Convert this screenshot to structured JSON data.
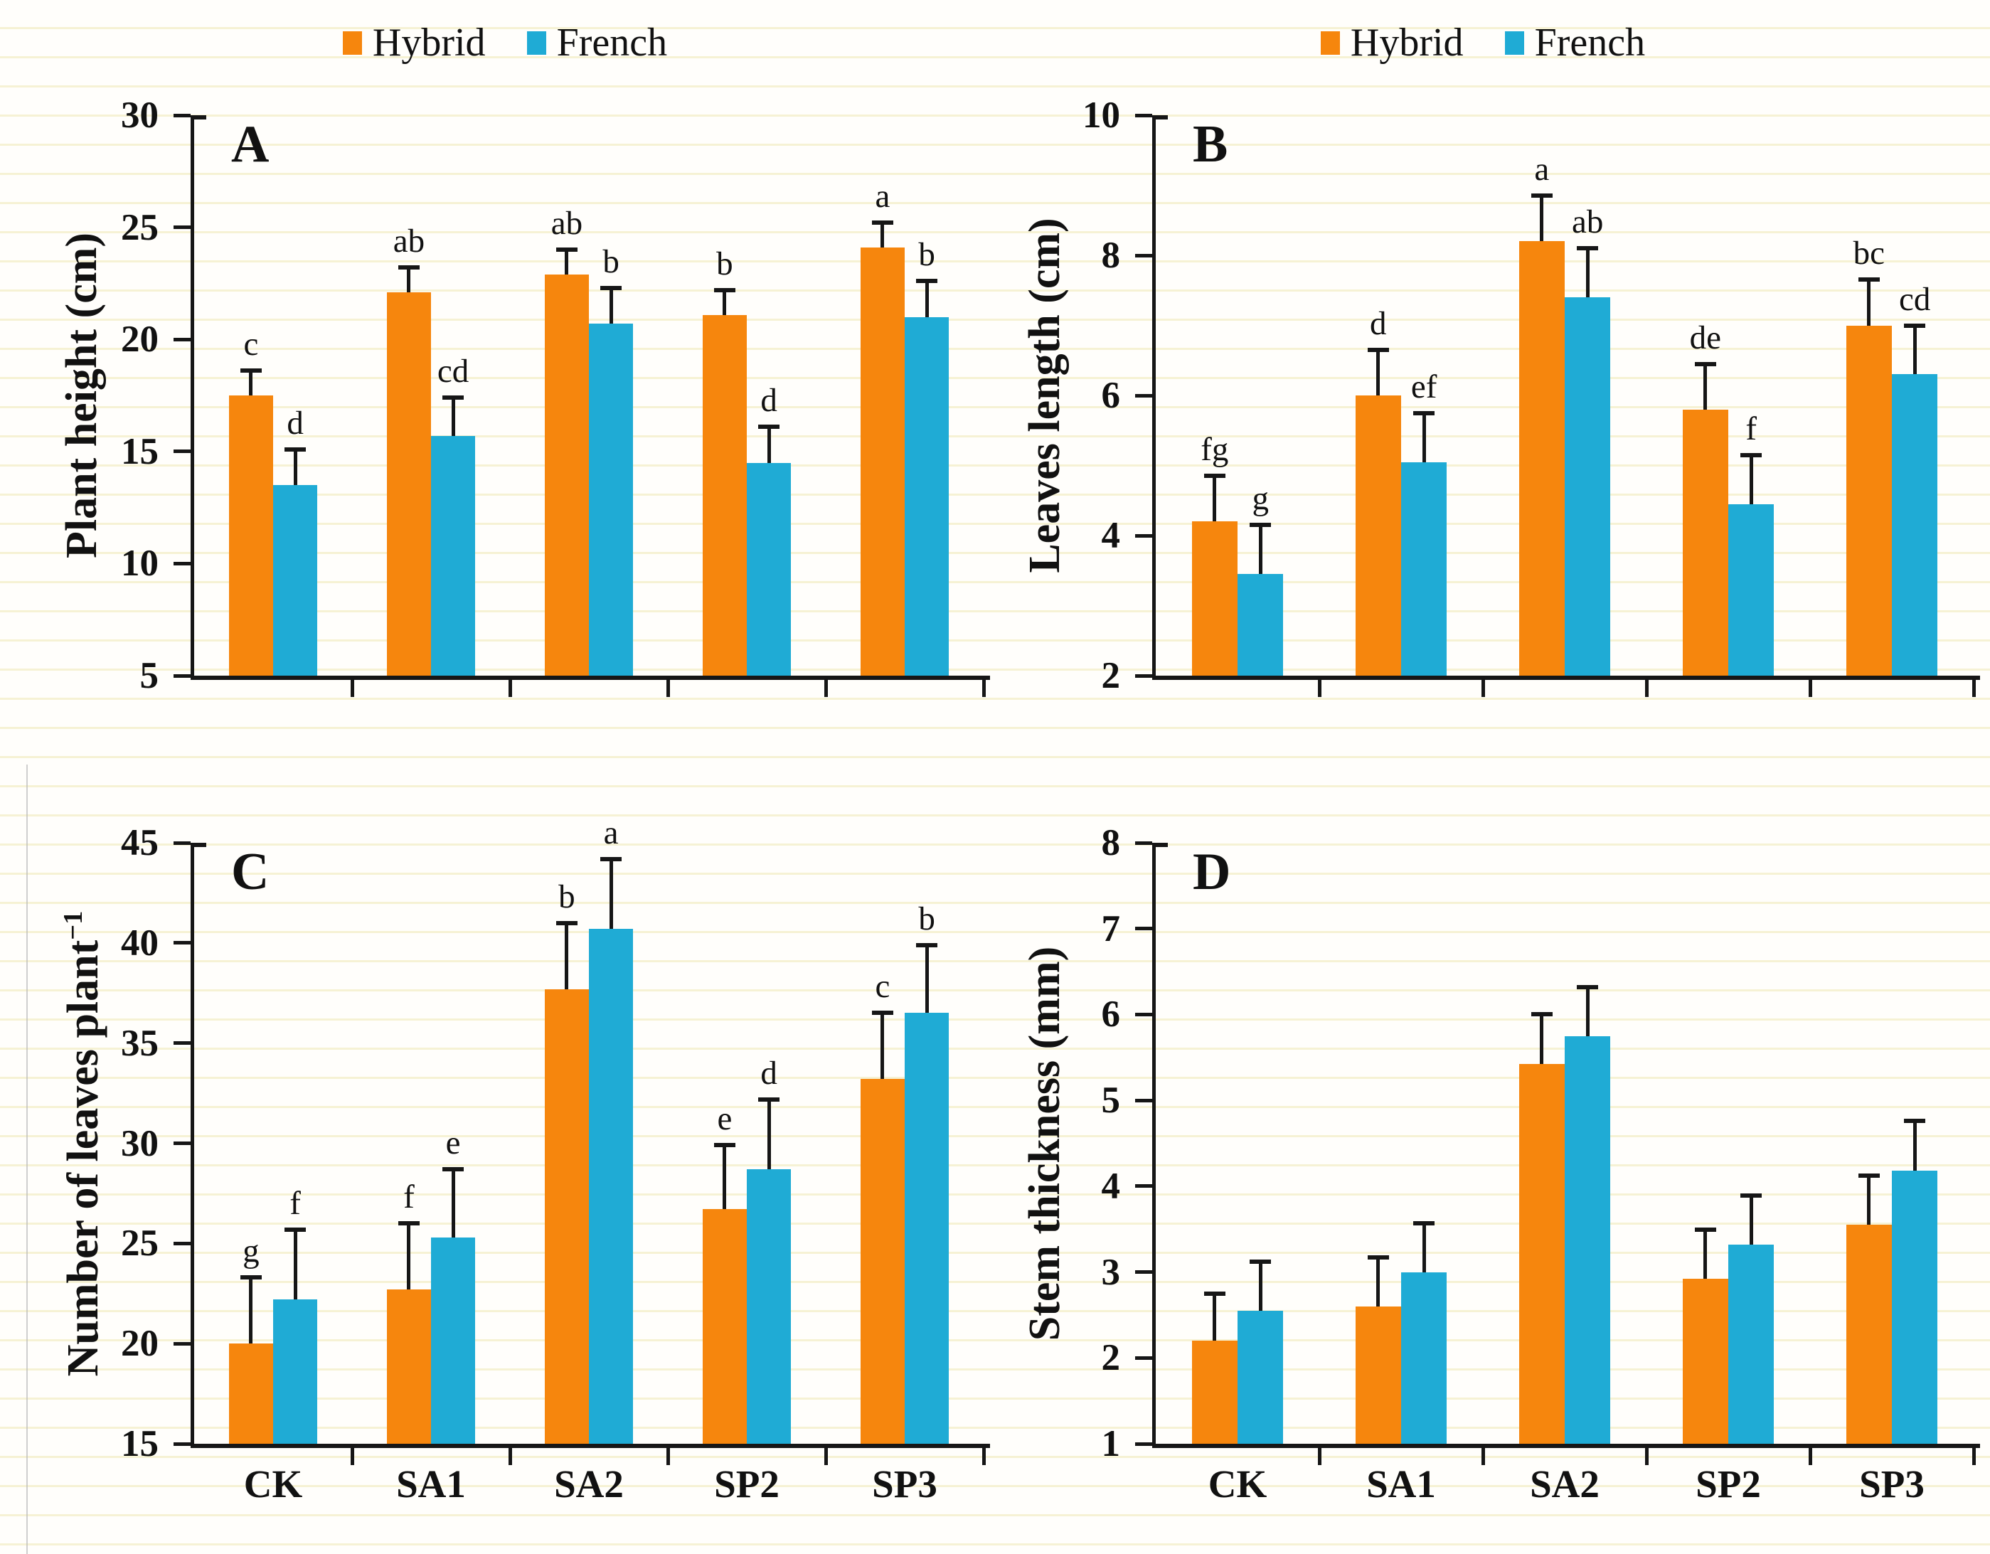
{
  "legend": {
    "items": [
      {
        "label": "Hybrid",
        "color": "#F6860D"
      },
      {
        "label": "French",
        "color": "#1FABD5"
      }
    ]
  },
  "chart_data": [
    {
      "id": "A",
      "panel_label": "A",
      "type": "bar",
      "title": "",
      "ylabel": "Plant height (cm)",
      "ylabel_sup": "",
      "xlabel": "",
      "ylim": [
        5,
        30
      ],
      "yticks": [
        5,
        10,
        15,
        20,
        25,
        30
      ],
      "categories": [
        "CK",
        "SA1",
        "SA2",
        "SP2",
        "SP3"
      ],
      "grid": false,
      "legend_position": "top-center",
      "show_legend": true,
      "show_xlabels": false,
      "error_bars": "upper, capped",
      "series": [
        {
          "name": "Hybrid",
          "color": "#F6860D",
          "values": [
            17.5,
            22.1,
            22.9,
            21.1,
            24.1
          ],
          "errors": [
            1.1,
            1.1,
            1.1,
            1.1,
            1.1
          ],
          "sig_letters": [
            "c",
            "ab",
            "ab",
            "b",
            "a"
          ]
        },
        {
          "name": "French",
          "color": "#1FABD5",
          "values": [
            13.5,
            15.7,
            20.7,
            14.5,
            21.0
          ],
          "errors": [
            1.6,
            1.7,
            1.6,
            1.6,
            1.6
          ],
          "sig_letters": [
            "d",
            "cd",
            "b",
            "d",
            "b"
          ]
        }
      ]
    },
    {
      "id": "B",
      "panel_label": "B",
      "type": "bar",
      "title": "",
      "ylabel": "Leaves length (cm)",
      "ylabel_sup": "",
      "xlabel": "",
      "ylim": [
        2,
        10
      ],
      "yticks": [
        2,
        4,
        6,
        8,
        10
      ],
      "categories": [
        "CK",
        "SA1",
        "SA2",
        "SP2",
        "SP3"
      ],
      "grid": false,
      "legend_position": "top-center",
      "show_legend": true,
      "show_xlabels": false,
      "error_bars": "upper, capped",
      "series": [
        {
          "name": "Hybrid",
          "color": "#F6860D",
          "values": [
            4.2,
            6.0,
            8.2,
            5.8,
            7.0
          ],
          "errors": [
            0.65,
            0.65,
            0.65,
            0.65,
            0.65
          ],
          "sig_letters": [
            "fg",
            "d",
            "a",
            "de",
            "bc"
          ]
        },
        {
          "name": "French",
          "color": "#1FABD5",
          "values": [
            3.45,
            5.05,
            7.4,
            4.45,
            6.3
          ],
          "errors": [
            0.7,
            0.7,
            0.7,
            0.7,
            0.7
          ],
          "sig_letters": [
            "g",
            "ef",
            "ab",
            "f",
            "cd"
          ]
        }
      ]
    },
    {
      "id": "C",
      "panel_label": "C",
      "type": "bar",
      "title": "",
      "ylabel": "Number of leaves  plant",
      "ylabel_sup": "−1",
      "xlabel": "",
      "ylim": [
        15,
        45
      ],
      "yticks": [
        15,
        20,
        25,
        30,
        35,
        40,
        45
      ],
      "categories": [
        "CK",
        "SA1",
        "SA2",
        "SP2",
        "SP3"
      ],
      "grid": false,
      "legend_position": "none",
      "show_legend": false,
      "show_xlabels": true,
      "error_bars": "upper, capped",
      "series": [
        {
          "name": "Hybrid",
          "color": "#F6860D",
          "values": [
            20.0,
            22.7,
            37.7,
            26.7,
            33.2
          ],
          "errors": [
            3.3,
            3.3,
            3.3,
            3.2,
            3.3
          ],
          "sig_letters": [
            "g",
            "f",
            "b",
            "e",
            "c"
          ]
        },
        {
          "name": "French",
          "color": "#1FABD5",
          "values": [
            22.2,
            25.3,
            40.7,
            28.7,
            36.5
          ],
          "errors": [
            3.5,
            3.4,
            3.5,
            3.5,
            3.4
          ],
          "sig_letters": [
            "f",
            "e",
            "a",
            "d",
            "b"
          ]
        }
      ]
    },
    {
      "id": "D",
      "panel_label": "D",
      "type": "bar",
      "title": "",
      "ylabel": "Stem thickness (mm)",
      "ylabel_sup": "",
      "xlabel": "",
      "ylim": [
        1,
        8
      ],
      "yticks": [
        1,
        2,
        3,
        4,
        5,
        6,
        7,
        8
      ],
      "categories": [
        "CK",
        "SA1",
        "SA2",
        "SP2",
        "SP3"
      ],
      "grid": false,
      "legend_position": "none",
      "show_legend": false,
      "show_xlabels": true,
      "error_bars": "upper, capped",
      "series": [
        {
          "name": "Hybrid",
          "color": "#F6860D",
          "values": [
            2.2,
            2.6,
            5.42,
            2.92,
            3.55
          ],
          "errors": [
            0.55,
            0.57,
            0.58,
            0.57,
            0.57
          ],
          "sig_letters": null
        },
        {
          "name": "French",
          "color": "#1FABD5",
          "values": [
            2.55,
            3.0,
            5.75,
            3.32,
            4.18
          ],
          "errors": [
            0.57,
            0.57,
            0.57,
            0.57,
            0.58
          ],
          "sig_letters": null
        }
      ]
    }
  ]
}
